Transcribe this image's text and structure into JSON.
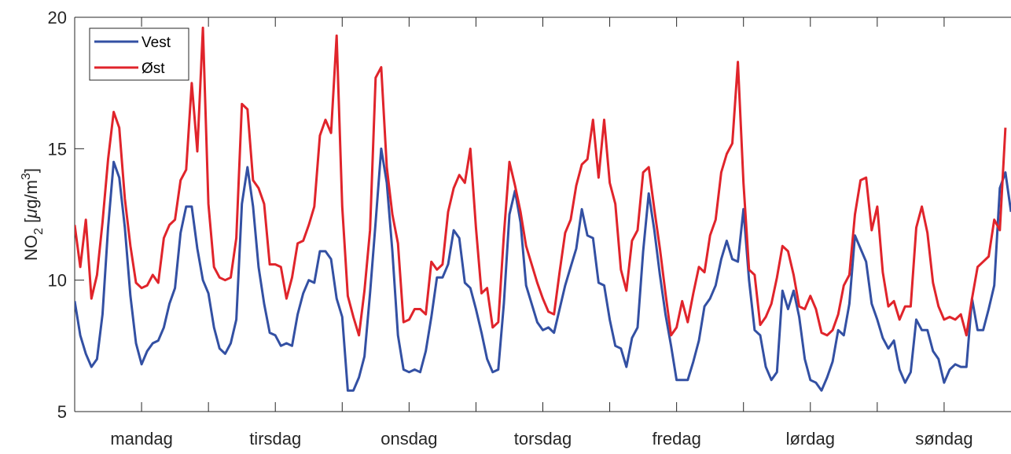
{
  "chart_data": {
    "type": "line",
    "title": "",
    "xlabel": "",
    "ylabel_main": "NO",
    "ylabel_sub": "2",
    "ylabel_unit_pre": " [",
    "ylabel_unit_mu": "μ",
    "ylabel_unit_mid": "g/m",
    "ylabel_unit_sup": "3",
    "ylabel_unit_post": "]",
    "ylim": [
      5,
      20
    ],
    "yticks": [
      5,
      10,
      15,
      20
    ],
    "xlim": [
      0,
      168
    ],
    "xticks": [
      12,
      24,
      36,
      48,
      60,
      72,
      84,
      96,
      108,
      120,
      132,
      144,
      156
    ],
    "day_labels": [
      "mandag",
      "tirsdag",
      "onsdag",
      "torsdag",
      "fredag",
      "lørdag",
      "søndag"
    ],
    "legend_position": "top-left",
    "grid": false,
    "series": [
      {
        "name": "Vest",
        "color": "#3350a3",
        "values": [
          9.2,
          7.9,
          7.2,
          6.7,
          7.0,
          8.7,
          12.0,
          14.5,
          13.9,
          12.0,
          9.4,
          7.6,
          6.8,
          7.3,
          7.6,
          7.7,
          8.2,
          9.1,
          9.7,
          11.8,
          12.8,
          12.8,
          11.2,
          10.0,
          9.5,
          8.2,
          7.4,
          7.2,
          7.6,
          8.5,
          12.9,
          14.3,
          12.8,
          10.5,
          9.1,
          8.0,
          7.9,
          7.5,
          7.6,
          7.5,
          8.7,
          9.5,
          10.0,
          9.9,
          11.1,
          11.1,
          10.8,
          9.3,
          8.6,
          5.8,
          5.8,
          6.3,
          7.1,
          9.5,
          12.2,
          15.0,
          13.7,
          11.1,
          7.9,
          6.6,
          6.5,
          6.6,
          6.5,
          7.3,
          8.6,
          10.1,
          10.1,
          10.6,
          11.9,
          11.6,
          9.9,
          9.7,
          8.9,
          8.0,
          7.0,
          6.5,
          6.6,
          9.1,
          12.5,
          13.4,
          12.2,
          9.8,
          9.1,
          8.4,
          8.1,
          8.2,
          8.0,
          8.9,
          9.8,
          10.5,
          11.2,
          12.7,
          11.7,
          11.6,
          9.9,
          9.8,
          8.5,
          7.5,
          7.4,
          6.7,
          7.8,
          8.2,
          11.1,
          13.3,
          11.9,
          10.2,
          8.7,
          7.5,
          6.2,
          6.2,
          6.2,
          6.9,
          7.7,
          9.0,
          9.3,
          9.8,
          10.8,
          11.5,
          10.8,
          10.7,
          12.7,
          10.0,
          8.1,
          7.9,
          6.7,
          6.2,
          6.5,
          9.6,
          8.9,
          9.6,
          8.6,
          7.0,
          6.2,
          6.1,
          5.8,
          6.3,
          6.9,
          8.1,
          7.9,
          9.1,
          11.7,
          11.2,
          10.7,
          9.1,
          8.5,
          7.8,
          7.4,
          7.7,
          6.6,
          6.1,
          6.5,
          8.5,
          8.1,
          8.1,
          7.3,
          7.0,
          6.1,
          6.6,
          6.8,
          6.7,
          6.7,
          9.3,
          8.1,
          8.1,
          8.9,
          9.8,
          13.5,
          14.1,
          12.6
        ]
      },
      {
        "name": "Øst",
        "color": "#e0242b",
        "values": [
          12.1,
          10.5,
          12.3,
          9.3,
          10.2,
          12.2,
          14.6,
          16.4,
          15.8,
          13.1,
          11.3,
          9.9,
          9.7,
          9.8,
          10.2,
          9.9,
          11.6,
          12.1,
          12.3,
          13.8,
          14.2,
          17.5,
          14.9,
          19.6,
          12.9,
          10.5,
          10.1,
          10.0,
          10.1,
          11.6,
          16.7,
          16.5,
          13.8,
          13.5,
          12.9,
          10.6,
          10.6,
          10.5,
          9.3,
          10.1,
          11.4,
          11.5,
          12.1,
          12.8,
          15.5,
          16.1,
          15.6,
          19.3,
          12.8,
          9.4,
          8.6,
          7.9,
          9.6,
          11.9,
          17.7,
          18.1,
          14.3,
          12.5,
          11.4,
          8.4,
          8.5,
          8.9,
          8.9,
          8.7,
          10.7,
          10.4,
          10.6,
          12.6,
          13.5,
          14.0,
          13.7,
          15.0,
          12.0,
          9.5,
          9.7,
          8.2,
          8.4,
          11.7,
          14.5,
          13.6,
          12.6,
          11.3,
          10.6,
          9.9,
          9.3,
          8.8,
          8.7,
          10.3,
          11.8,
          12.3,
          13.6,
          14.4,
          14.6,
          16.1,
          13.9,
          16.1,
          13.7,
          12.9,
          10.4,
          9.6,
          11.5,
          11.9,
          14.1,
          14.3,
          12.7,
          11.2,
          9.5,
          7.9,
          8.2,
          9.2,
          8.4,
          9.5,
          10.5,
          10.3,
          11.7,
          12.3,
          14.1,
          14.8,
          15.2,
          18.3,
          13.7,
          10.4,
          10.2,
          8.3,
          8.6,
          9.1,
          10.1,
          11.3,
          11.1,
          10.2,
          9.0,
          8.9,
          9.4,
          8.9,
          8.0,
          7.9,
          8.1,
          8.7,
          9.8,
          10.2,
          12.5,
          13.8,
          13.9,
          11.9,
          12.8,
          10.3,
          9.0,
          9.2,
          8.5,
          9.0,
          9.0,
          12.0,
          12.8,
          11.8,
          9.9,
          9.0,
          8.5,
          8.6,
          8.5,
          8.7,
          7.9,
          9.3,
          10.5,
          10.7,
          10.9,
          12.3,
          11.9,
          15.8
        ]
      }
    ]
  }
}
